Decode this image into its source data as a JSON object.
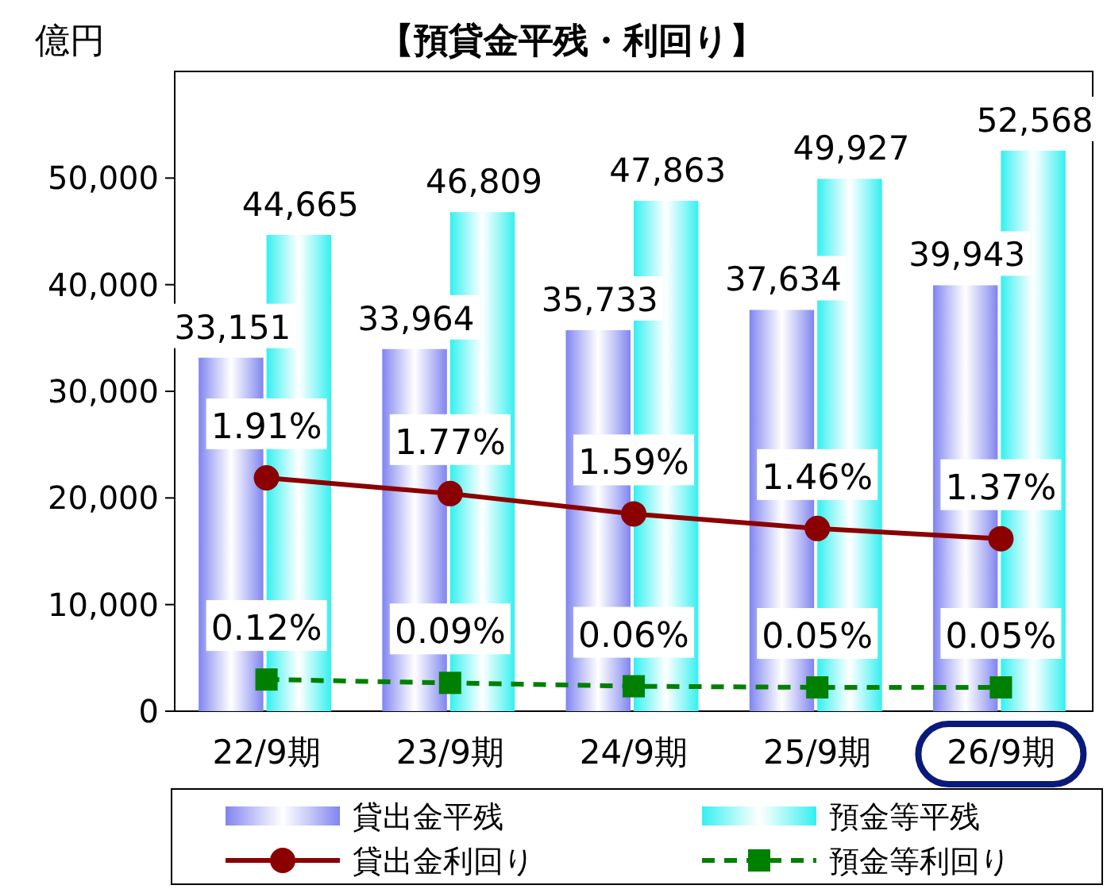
{
  "chart_data": {
    "type": "bar",
    "title": "【預貸金平残・利回り】",
    "ylabel": "億円",
    "categories": [
      "22/9期",
      "23/9期",
      "24/9期",
      "25/9期",
      "26/9期"
    ],
    "series": [
      {
        "name": "貸出金平残",
        "color": "#7f84f0",
        "values": [
          33151,
          33964,
          35733,
          37634,
          39943
        ],
        "value_labels": [
          "33,151",
          "33,964",
          "35,733",
          "37,634",
          "39,943"
        ]
      },
      {
        "name": "預金等平残",
        "color": "#33f0f0",
        "values": [
          44665,
          46809,
          47863,
          49927,
          52568
        ],
        "value_labels": [
          "44,665",
          "46,809",
          "47,863",
          "49,927",
          "52,568"
        ]
      },
      {
        "name": "貸出金利回り",
        "type": "line",
        "axis": "y2",
        "color": "#8b0000",
        "marker": "circle",
        "line_style": "solid",
        "values": [
          1.91,
          1.77,
          1.59,
          1.46,
          1.37
        ],
        "value_labels": [
          "1.91%",
          "1.77%",
          "1.59%",
          "1.46%",
          "1.37%"
        ]
      },
      {
        "name": "預金等利回り",
        "type": "line",
        "axis": "y2",
        "color": "#008000",
        "marker": "square",
        "line_style": "dashed",
        "values": [
          0.12,
          0.09,
          0.06,
          0.05,
          0.05
        ],
        "value_labels": [
          "0.12%",
          "0.09%",
          "0.06%",
          "0.05%",
          "0.05%"
        ]
      }
    ],
    "ylim": [
      0,
      60000
    ],
    "yticks": [
      {
        "value": 0,
        "label": "0"
      },
      {
        "value": 10000,
        "label": "10,000"
      },
      {
        "value": 20000,
        "label": "20,000"
      },
      {
        "value": 30000,
        "label": "30,000"
      },
      {
        "value": 40000,
        "label": "40,000"
      },
      {
        "value": 50000,
        "label": "50,000"
      }
    ],
    "legend": "bottom",
    "grid": false
  }
}
